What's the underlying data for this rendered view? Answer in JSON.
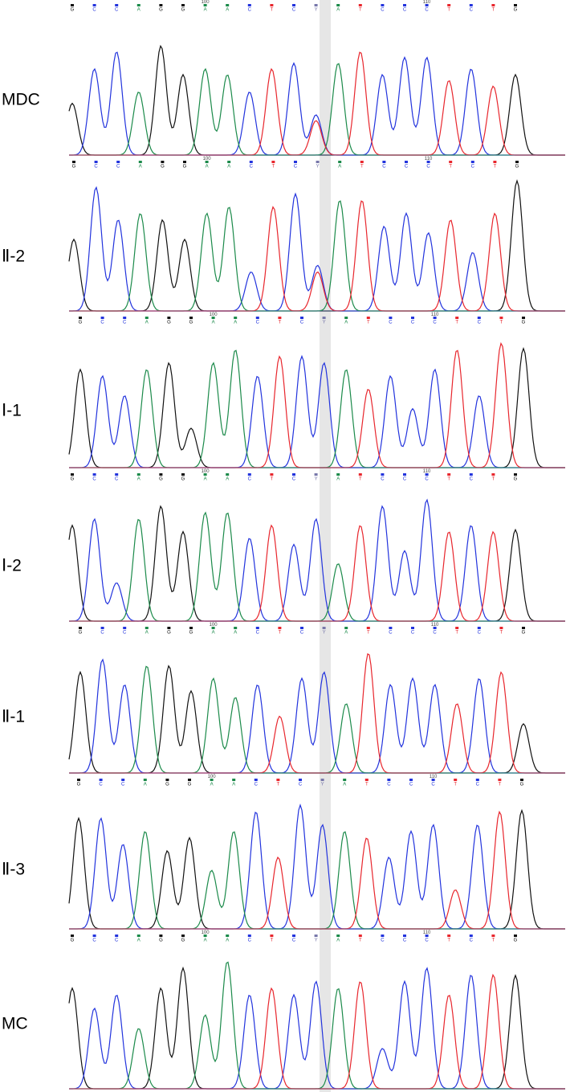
{
  "panels": [
    {
      "label": "MDC"
    },
    {
      "label": "Ⅱ-2"
    },
    {
      "label": "Ⅰ-1"
    },
    {
      "label": "Ⅰ-2"
    },
    {
      "label": "Ⅱ-1"
    },
    {
      "label": "Ⅱ-3"
    },
    {
      "label": "MC"
    }
  ],
  "sequence": [
    {
      "base": "G"
    },
    {
      "base": "C"
    },
    {
      "base": "C"
    },
    {
      "base": "A"
    },
    {
      "base": "G"
    },
    {
      "base": "G"
    },
    {
      "base": "A",
      "number": "100"
    },
    {
      "base": "A"
    },
    {
      "base": "C"
    },
    {
      "base": "T"
    },
    {
      "base": "C"
    },
    {
      "base": "Y"
    },
    {
      "base": "A"
    },
    {
      "base": "T"
    },
    {
      "base": "C"
    },
    {
      "base": "C"
    },
    {
      "base": "C",
      "number": "110"
    },
    {
      "base": "T"
    },
    {
      "base": "C"
    },
    {
      "base": "T"
    },
    {
      "base": "G"
    }
  ]
}
